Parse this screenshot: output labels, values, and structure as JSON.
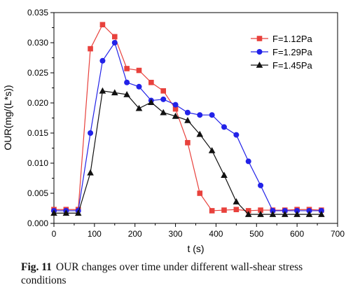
{
  "chart_data": {
    "type": "line",
    "xlabel": "t (s)",
    "ylabel": "OUR(mg/(L*s))",
    "xlim": [
      0,
      700
    ],
    "ylim": [
      0,
      0.035
    ],
    "xticks": [
      0,
      100,
      200,
      300,
      400,
      500,
      600,
      700
    ],
    "xtick_labels": [
      "0",
      "100",
      "200",
      "300",
      "400",
      "500",
      "600",
      "700"
    ],
    "yticks": [
      0,
      0.005,
      0.01,
      0.015,
      0.02,
      0.025,
      0.03,
      0.035
    ],
    "ytick_labels": [
      "0.000",
      "0.005",
      "0.010",
      "0.015",
      "0.020",
      "0.025",
      "0.030",
      "0.035"
    ],
    "grid": false,
    "legend_position": "top-right",
    "series": [
      {
        "name": "F=1.12Pa",
        "color": "#e8413c",
        "marker": "square",
        "x": [
          0,
          30,
          60,
          90,
          120,
          150,
          180,
          210,
          240,
          270,
          300,
          330,
          360,
          390,
          420,
          450,
          480,
          510,
          540,
          570,
          600,
          630,
          660
        ],
        "y": [
          0.0023,
          0.0023,
          0.0023,
          0.029,
          0.033,
          0.031,
          0.0257,
          0.0254,
          0.0234,
          0.022,
          0.019,
          0.0134,
          0.005,
          0.0021,
          0.0022,
          0.0023,
          0.0021,
          0.0022,
          0.0022,
          0.0022,
          0.0023,
          0.0023,
          0.0022
        ]
      },
      {
        "name": "F=1.29Pa",
        "color": "#2222e8",
        "marker": "circle",
        "x": [
          0,
          30,
          60,
          90,
          120,
          150,
          180,
          210,
          240,
          270,
          300,
          330,
          360,
          390,
          420,
          450,
          480,
          510,
          540,
          570,
          600,
          630,
          660
        ],
        "y": [
          0.0021,
          0.0021,
          0.0021,
          0.015,
          0.027,
          0.03,
          0.0234,
          0.0227,
          0.0204,
          0.0206,
          0.0197,
          0.0184,
          0.018,
          0.018,
          0.016,
          0.0147,
          0.0103,
          0.0063,
          0.0021,
          0.0021,
          0.0021,
          0.0021,
          0.0021
        ]
      },
      {
        "name": "F=1.45Pa",
        "color": "#111111",
        "marker": "triangle",
        "x": [
          0,
          30,
          60,
          90,
          120,
          150,
          180,
          210,
          240,
          270,
          300,
          330,
          360,
          390,
          420,
          450,
          480,
          510,
          540,
          570,
          600,
          630,
          660
        ],
        "y": [
          0.0017,
          0.0017,
          0.0017,
          0.0084,
          0.022,
          0.0217,
          0.0214,
          0.0191,
          0.0201,
          0.0184,
          0.0178,
          0.0171,
          0.0148,
          0.0121,
          0.008,
          0.0036,
          0.0015,
          0.0015,
          0.0015,
          0.0015,
          0.0015,
          0.0015,
          0.0015
        ]
      }
    ]
  },
  "caption": {
    "label": "Fig. 11",
    "text": "OUR changes over time under different wall-shear stress conditions"
  }
}
